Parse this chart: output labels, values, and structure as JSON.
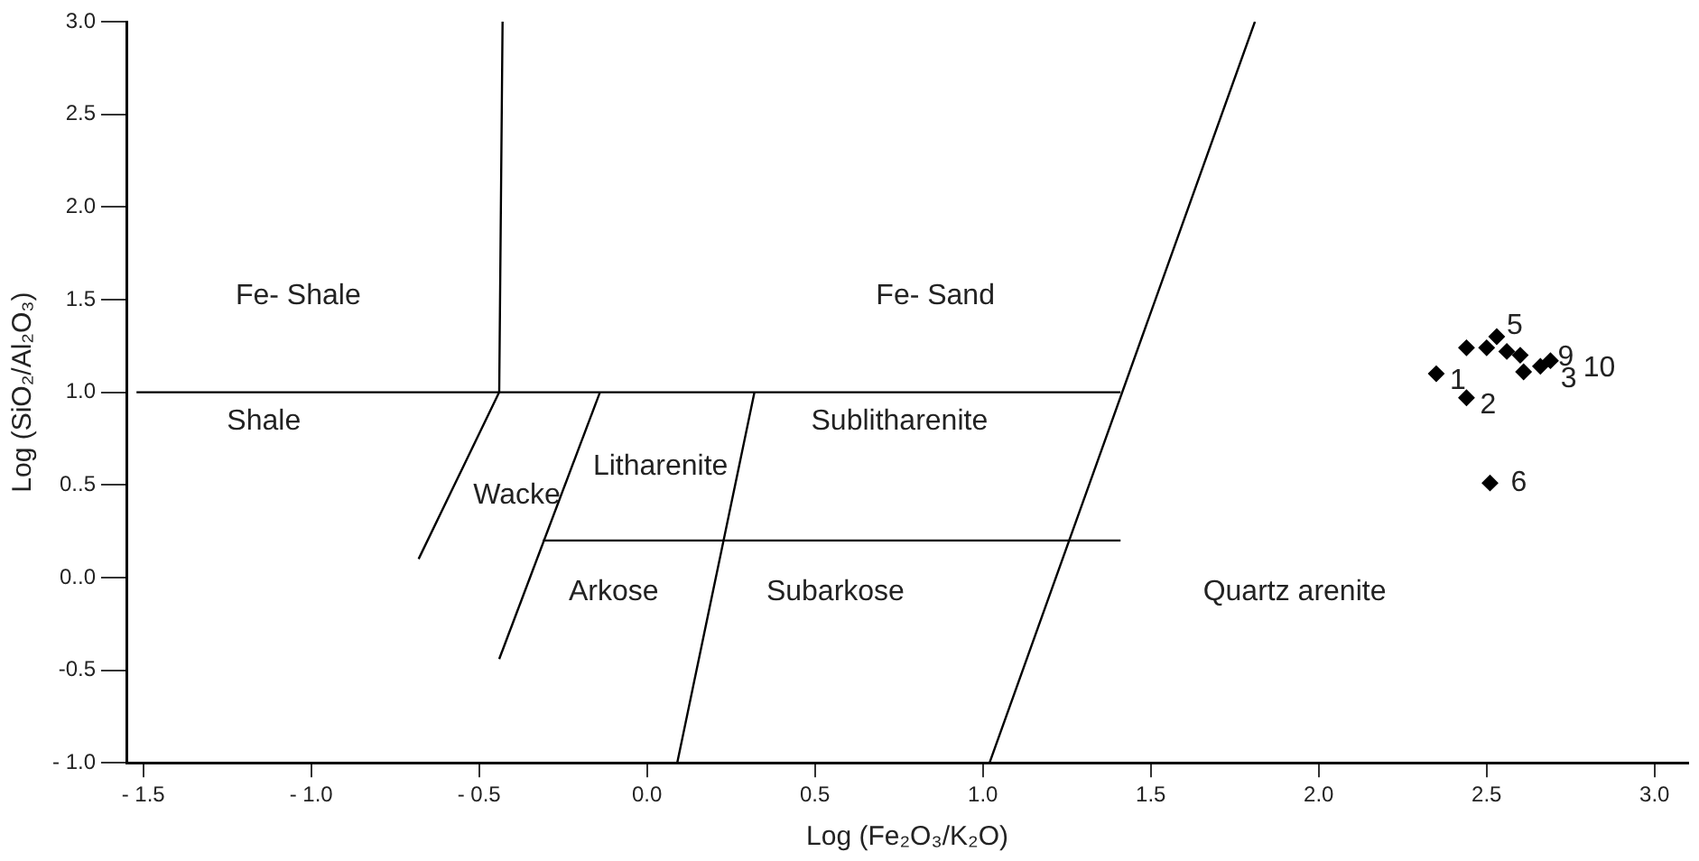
{
  "chart_data": {
    "type": "scatter",
    "xlabel": "Log (Fe₂O₃/K₂O)",
    "ylabel": "Log (SiO₂/Al₂O₃)",
    "xlim": [
      -1.55,
      3.1
    ],
    "ylim": [
      -1,
      3
    ],
    "xticks": [
      {
        "value": -1.5,
        "label": "- 1.5"
      },
      {
        "value": -1,
        "label": "- 1.0"
      },
      {
        "value": -0.5,
        "label": "- 0.5"
      },
      {
        "value": 0,
        "label": "0.0"
      },
      {
        "value": 0.5,
        "label": "0.5"
      },
      {
        "value": 1,
        "label": "1.0"
      },
      {
        "value": 1.5,
        "label": "1.5"
      },
      {
        "value": 2,
        "label": "2.0"
      },
      {
        "value": 2.5,
        "label": "2.5"
      },
      {
        "value": 3,
        "label": "3.0"
      }
    ],
    "yticks": [
      {
        "value": -1,
        "label": "- 1.0"
      },
      {
        "value": -0.5,
        "label": "-0.5"
      },
      {
        "value": 0,
        "label": "0..0"
      },
      {
        "value": 0.5,
        "label": "0..5"
      },
      {
        "value": 1,
        "label": "1.0"
      },
      {
        "value": 1.5,
        "label": "1.5"
      },
      {
        "value": 2,
        "label": "2.0"
      },
      {
        "value": 2.5,
        "label": "2.5"
      },
      {
        "value": 3,
        "label": "3.0"
      }
    ],
    "grid": false,
    "legend": false,
    "series": [
      {
        "type": "scatter",
        "marker": "diamond",
        "color": "#000000",
        "x": [
          2.35,
          2.44,
          2.51,
          2.53,
          2.44,
          2.5,
          2.56,
          2.6,
          2.61,
          2.66,
          2.69
        ],
        "values": [
          1.1,
          0.97,
          0.51,
          1.3,
          1.24,
          1.24,
          1.22,
          1.2,
          1.11,
          1.14,
          1.17
        ]
      },
      {
        "type": "line",
        "marker": "none",
        "color": "#000000",
        "x": [
          -1.52,
          1.41
        ],
        "values": [
          1,
          1
        ]
      },
      {
        "type": "line",
        "marker": "none",
        "color": "#000000",
        "x": [
          -0.43,
          -0.44,
          -0.68
        ],
        "values": [
          3,
          1,
          0.1
        ]
      },
      {
        "type": "line",
        "marker": "none",
        "color": "#000000",
        "x": [
          -0.14,
          -0.44
        ],
        "values": [
          1,
          -0.44
        ]
      },
      {
        "type": "line",
        "marker": "none",
        "color": "#000000",
        "x": [
          0.32,
          0.09
        ],
        "values": [
          1,
          -1
        ]
      },
      {
        "type": "line",
        "marker": "none",
        "color": "#000000",
        "x": [
          -0.31,
          1.41
        ],
        "values": [
          0.2,
          0.2
        ]
      },
      {
        "type": "line",
        "marker": "none",
        "color": "#000000",
        "x": [
          1.02,
          1.81
        ],
        "values": [
          -1,
          3
        ]
      }
    ],
    "annotations": [
      "Fe- Shale",
      "Fe- Sand",
      "Shale",
      "Sublitharenite",
      "Wacke",
      "Litharenite",
      "Arkose",
      "Subarkose",
      "Quartz arenite",
      {
        "text": "1",
        "x": 2.35,
        "y": 1.1
      },
      {
        "text": "2",
        "x": 2.44,
        "y": 0.97
      },
      {
        "text": "3",
        "x": 2.61,
        "y": 1.11
      },
      {
        "text": "5",
        "x": 2.53,
        "y": 1.3
      },
      {
        "text": "6",
        "x": 2.51,
        "y": 0.51
      },
      {
        "text": "9",
        "x": 2.66,
        "y": 1.14
      },
      {
        "text": "10",
        "x": 2.69,
        "y": 1.17
      }
    ]
  }
}
